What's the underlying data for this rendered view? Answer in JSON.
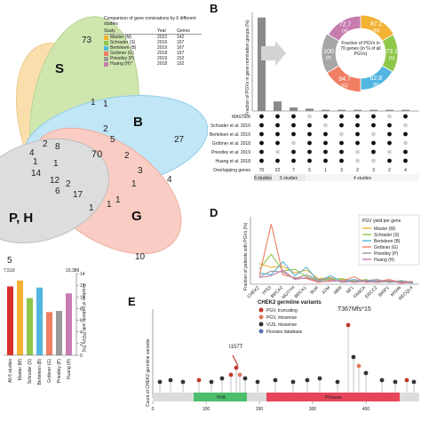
{
  "panelA": {
    "legend_title": "Comparison of gene nominations by 6 different studies",
    "col_study": "Study",
    "col_year": "Year",
    "col_genes": "Genes",
    "studies": [
      {
        "name": "Master (M)",
        "year": "2022",
        "genes": "142",
        "color": "#f2b233"
      },
      {
        "name": "Schrader (S)",
        "year": "2016",
        "genes": "167",
        "color": "#8fc74a"
      },
      {
        "name": "Berteleen (B)",
        "year": "2019",
        "genes": "167",
        "color": "#52b6e0"
      },
      {
        "name": "Gröbner (G)",
        "year": "2018",
        "genes": "157",
        "color": "#ef7e63"
      },
      {
        "name": "Priestley (P)",
        "year": "2019",
        "genes": "152",
        "color": "#9a9a9a"
      },
      {
        "name": "Huang (H)*",
        "year": "2018",
        "genes": "152",
        "color": "#c77cb0"
      }
    ],
    "set_labels": {
      "S": "S",
      "B": "B",
      "G": "G",
      "PH": "P, H"
    },
    "region_counts": [
      "73",
      "27",
      "10",
      "5",
      "70",
      "17",
      "12",
      "14",
      "8",
      "4",
      "2",
      "2",
      "1",
      "1",
      "1",
      "1",
      "1",
      "1",
      "1",
      "4",
      "6",
      "2",
      "3",
      "5",
      "2",
      "1"
    ]
  },
  "panelB": {
    "letter": "B",
    "ylabel": "Fraction of PGVs in gene nomination groups (%)",
    "row_labels": [
      "MASTER",
      "Schrader et al. 2016",
      "Berteleen et al. 2019",
      "Gröbner et al. 2018",
      "Priestley et al. 2019",
      "Huang et al. 2018",
      "Overlapping genes"
    ],
    "overlap_counts": [
      "70",
      "22",
      "7",
      "5",
      "1",
      "3",
      "2",
      "3",
      "2",
      "4"
    ],
    "group_labels": [
      "6 studies",
      "5 studies",
      "4 studies"
    ],
    "donut_title": "Fraction of PGVs in 70 genes (in % of all PGVs)",
    "donut_segments": [
      {
        "label": "87.2",
        "sub": "M",
        "value": 87.2,
        "color": "#f2b233"
      },
      {
        "label": "73.1",
        "sub": "S",
        "value": 73.1,
        "color": "#8fc74a"
      },
      {
        "label": "62.8",
        "sub": "B",
        "value": 62.8,
        "color": "#52b6e0"
      },
      {
        "label": "94.7",
        "sub": "G",
        "value": 94.7,
        "color": "#ef7e63"
      },
      {
        "label": "100",
        "sub": "P",
        "value": 100,
        "color": "#a6a6a6"
      },
      {
        "label": "72.7",
        "sub": "H",
        "value": 72.7,
        "color": "#c77cb0"
      }
    ]
  },
  "panelD": {
    "letter": "D",
    "legend_title": "PGV yield per gene",
    "ylabel": "Fraction of patients with PGVs (%)",
    "legend": [
      "Master (M)",
      "Schrader (S)",
      "Berteleen (B)",
      "Gröbner (G)",
      "Priestley (P)",
      "Huang (H)"
    ]
  },
  "panelC": {
    "ylabel": "Fraction of patients with PGVs (%)",
    "top_counts": [
      "7,510",
      "",
      "10,389"
    ],
    "categories": [
      "All 6 studies",
      "Master (M)",
      "Schrader (S)",
      "Berteleen (B)",
      "Gröbner (G)",
      "Priestley (P)",
      "Huang (H)"
    ],
    "ticks": [
      "0",
      "2",
      "4",
      "6",
      "8",
      "10",
      "12",
      "14"
    ]
  },
  "panelE": {
    "letter": "E",
    "legend_title": "CHEK2 germline variants",
    "legend": [
      {
        "label": "PGV, truncating",
        "color": "#c0392b"
      },
      {
        "label": "PGV, missense",
        "color": "#e07a5f"
      },
      {
        "label": "VUS, missense",
        "color": "#333333"
      },
      {
        "label": "Flossies database",
        "color": "#5a6fb4"
      }
    ],
    "ylabel": "Count of CHEK2 germline variants",
    "mutation_label_1": "T367Mfs*15",
    "mutation_label_2": "I157T",
    "domain_labels": [
      "FHA",
      "PKinase"
    ],
    "x_ticks": [
      "0",
      "100",
      "200",
      "300",
      "400"
    ]
  }
}
